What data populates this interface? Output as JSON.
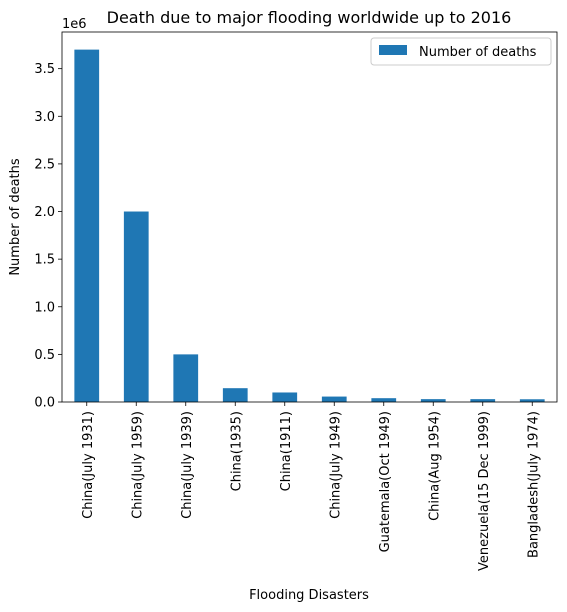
{
  "chart_data": {
    "type": "bar",
    "title": "Death due to major flooding worldwide up to 2016",
    "xlabel": "Flooding Disasters",
    "ylabel": "Number of deaths",
    "y_offset_label": "1e6",
    "categories": [
      "China(July 1931)",
      "China(July 1959)",
      "China(July 1939)",
      "China(1935)",
      "China(1911)",
      "China(July 1949)",
      "Guatemala(Oct 1949)",
      "China(Aug 1954)",
      "Venezuela(15 Dec 1999)",
      "Bangladesh(July 1974)"
    ],
    "series": [
      {
        "name": "Number of deaths",
        "color": "#1f77b4",
        "values": [
          3700000,
          2000000,
          500000,
          145000,
          100000,
          57000,
          40000,
          30000,
          30000,
          28700
        ]
      }
    ],
    "ylim": [
      0,
      3885000
    ],
    "yticks": [
      0,
      500000,
      1000000,
      1500000,
      2000000,
      2500000,
      3000000,
      3500000
    ],
    "ytick_labels": [
      "0.0",
      "0.5",
      "1.0",
      "1.5",
      "2.0",
      "2.5",
      "3.0",
      "3.5"
    ],
    "grid": false,
    "legend_position": "top-right"
  }
}
